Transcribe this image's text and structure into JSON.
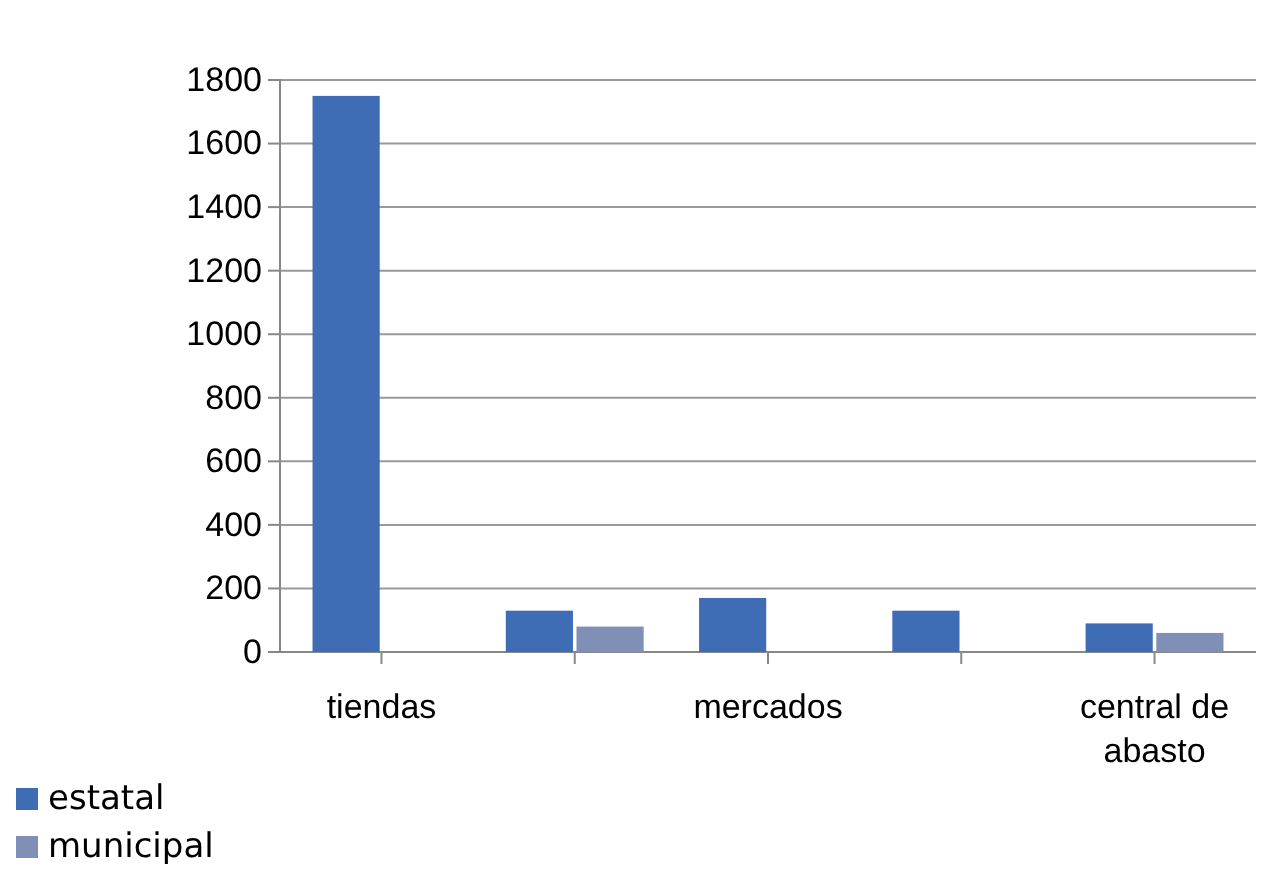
{
  "chart_data": {
    "type": "bar",
    "categories": [
      "tiendas",
      null,
      "mercados",
      null,
      "central de abasto"
    ],
    "series": [
      {
        "name": "estatal",
        "color": "#3e6db5",
        "values": [
          1750,
          130,
          170,
          130,
          90
        ]
      },
      {
        "name": "municipal",
        "color": "#7f8fb5",
        "values": [
          null,
          80,
          null,
          null,
          60
        ]
      }
    ],
    "ylim": [
      0,
      1800
    ],
    "yticks": [
      0,
      200,
      400,
      600,
      800,
      1000,
      1200,
      1400,
      1600,
      1800
    ],
    "grid": "y",
    "legend": "bottom left"
  }
}
